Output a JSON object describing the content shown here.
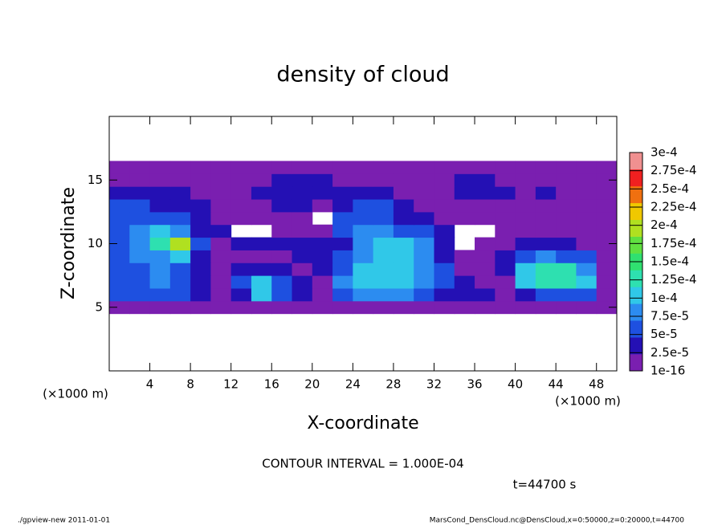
{
  "chart_data": {
    "type": "heatmap",
    "title": "density of cloud",
    "x_label": "X-coordinate",
    "y_label": "Z-coordinate",
    "x_unit": "(×1000 m)",
    "y_unit": "(×1000 m)",
    "contour_note": "CONTOUR INTERVAL = 1.000E-04",
    "time_label": "t=44700 s",
    "footer_left": "./gpview-new  2011-01-01",
    "footer_right": "MarsCond_DensCloud.nc@DensCloud,x=0:50000,z=0:20000,t=44700",
    "xlim": [
      0,
      50
    ],
    "ylim": [
      0,
      20
    ],
    "xticks": [
      4,
      8,
      12,
      16,
      20,
      24,
      28,
      32,
      36,
      40,
      44,
      48
    ],
    "yticks": [
      5,
      10,
      15
    ],
    "x": [
      1,
      3,
      5,
      7,
      9,
      11,
      13,
      15,
      17,
      19,
      21,
      23,
      25,
      27,
      29,
      31,
      33,
      35,
      37,
      39,
      41,
      43,
      45,
      47,
      49
    ],
    "z": [
      5,
      6,
      7,
      8,
      9,
      10,
      11,
      12,
      13,
      14,
      15,
      16
    ],
    "values": [
      [
        1e-05,
        1e-05,
        1e-05,
        1e-05,
        1e-05,
        1e-05,
        1e-05,
        1e-05,
        1e-05,
        1e-05,
        1e-05,
        1e-05,
        1e-05,
        1e-05,
        1e-05,
        1e-05,
        1e-05,
        1e-05,
        1e-05,
        1e-05,
        1e-05,
        1e-05,
        1e-05,
        1e-05,
        1e-05
      ],
      [
        5e-05,
        6e-05,
        6e-05,
        5e-05,
        3e-05,
        2e-05,
        3e-05,
        0.0001,
        6e-05,
        3e-05,
        2e-05,
        5e-05,
        8e-05,
        9e-05,
        8e-05,
        6e-05,
        4e-05,
        3e-05,
        3e-05,
        2e-05,
        4e-05,
        6e-05,
        6e-05,
        5e-05,
        2e-05
      ],
      [
        6e-05,
        7e-05,
        8e-05,
        6e-05,
        3e-05,
        2e-05,
        6e-05,
        0.0001,
        7e-05,
        3e-05,
        2e-05,
        9e-05,
        0.00012,
        0.00012,
        0.0001,
        8e-05,
        7e-05,
        3e-05,
        2e-05,
        2e-05,
        0.0001,
        0.00014,
        0.00014,
        0.0001,
        2e-05
      ],
      [
        6e-05,
        7e-05,
        8e-05,
        7e-05,
        4e-05,
        2e-05,
        3e-05,
        4e-05,
        3e-05,
        2e-05,
        3e-05,
        7e-05,
        0.00012,
        0.00012,
        0.00011,
        9e-05,
        5e-05,
        2e-05,
        2e-05,
        3e-05,
        0.00012,
        0.00014,
        0.00013,
        9e-05,
        2e-05
      ],
      [
        7e-05,
        8e-05,
        9e-05,
        0.00012,
        4e-05,
        2e-05,
        2e-05,
        2e-05,
        2e-05,
        3e-05,
        4e-05,
        6e-05,
        8e-05,
        0.0001,
        0.00011,
        8e-05,
        3e-05,
        2e-05,
        2e-05,
        3e-05,
        7e-05,
        8e-05,
        7e-05,
        5e-05,
        2e-05
      ],
      [
        7e-05,
        9e-05,
        0.00014,
        0.0002,
        5e-05,
        2e-05,
        3e-05,
        3e-05,
        4e-05,
        3e-05,
        3e-05,
        4e-05,
        8e-05,
        0.0001,
        0.00011,
        9e-05,
        4e-05,
        0,
        2e-05,
        2e-05,
        3e-05,
        3e-05,
        3e-05,
        2e-05,
        2e-05
      ],
      [
        7e-05,
        8e-05,
        0.0001,
        8e-05,
        4e-05,
        3e-05,
        0,
        0,
        2e-05,
        2e-05,
        2e-05,
        5e-05,
        8e-05,
        8e-05,
        7e-05,
        6e-05,
        3e-05,
        0,
        0,
        2e-05,
        2e-05,
        2e-05,
        2e-05,
        2e-05,
        2e-05
      ],
      [
        7e-05,
        7e-05,
        6e-05,
        5e-05,
        3e-05,
        2e-05,
        2e-05,
        2e-05,
        2e-05,
        2e-05,
        0,
        5e-05,
        6e-05,
        6e-05,
        4e-05,
        3e-05,
        2e-05,
        2e-05,
        2e-05,
        2e-05,
        2e-05,
        2e-05,
        2e-05,
        2e-05,
        2e-05
      ],
      [
        5e-05,
        5e-05,
        4e-05,
        4e-05,
        3e-05,
        2e-05,
        2e-05,
        2e-05,
        3e-05,
        3e-05,
        2e-05,
        4e-05,
        6e-05,
        5e-05,
        3e-05,
        2e-05,
        2e-05,
        2e-05,
        2e-05,
        2e-05,
        2e-05,
        2e-05,
        2e-05,
        2e-05,
        2e-05
      ],
      [
        4e-05,
        4e-05,
        3e-05,
        3e-05,
        2e-05,
        2e-05,
        2e-05,
        3e-05,
        4e-05,
        4e-05,
        3e-05,
        3e-05,
        3e-05,
        3e-05,
        2e-05,
        2e-05,
        2e-05,
        3e-05,
        4e-05,
        3e-05,
        2e-05,
        3e-05,
        2e-05,
        2e-05,
        2e-05
      ],
      [
        2e-05,
        2e-05,
        2e-05,
        2e-05,
        2e-05,
        2e-05,
        2e-05,
        2e-05,
        4e-05,
        4e-05,
        3e-05,
        2e-05,
        2e-05,
        2e-05,
        2e-05,
        2e-05,
        2e-05,
        4e-05,
        3e-05,
        2e-05,
        2e-05,
        2e-05,
        2e-05,
        2e-05,
        2e-05
      ],
      [
        1e-05,
        1e-05,
        1e-05,
        1e-05,
        1e-05,
        1e-05,
        1e-05,
        1e-05,
        1e-05,
        1e-05,
        1e-05,
        1e-05,
        1e-05,
        1e-05,
        1e-05,
        1e-05,
        1e-05,
        1e-05,
        1e-05,
        1e-05,
        1e-05,
        1e-05,
        1e-05,
        1e-05,
        1e-05
      ]
    ],
    "levels": [
      {
        "value": 1e-16,
        "label": "1e-16"
      },
      {
        "value": 2.5e-05,
        "label": "2.5e-5"
      },
      {
        "value": 5e-05,
        "label": "5e-5"
      },
      {
        "value": 7.5e-05,
        "label": "7.5e-5"
      },
      {
        "value": 0.0001,
        "label": "1e-4"
      },
      {
        "value": 0.000125,
        "label": "1.25e-4"
      },
      {
        "value": 0.00015,
        "label": "1.5e-4"
      },
      {
        "value": 0.000175,
        "label": "1.75e-4"
      },
      {
        "value": 0.0002,
        "label": "2e-4"
      },
      {
        "value": 0.000225,
        "label": "2.25e-4"
      },
      {
        "value": 0.00025,
        "label": "2.5e-4"
      },
      {
        "value": 0.000275,
        "label": "2.75e-4"
      },
      {
        "value": 0.0003,
        "label": "3e-4"
      }
    ],
    "colors": [
      "#7a1fb0",
      "#2410b4",
      "#1e50e0",
      "#2c8cf0",
      "#30c8e8",
      "#2ee0b0",
      "#30e070",
      "#60e040",
      "#b0e020",
      "#f0c800",
      "#f07010",
      "#f02020",
      "#f09090"
    ]
  }
}
